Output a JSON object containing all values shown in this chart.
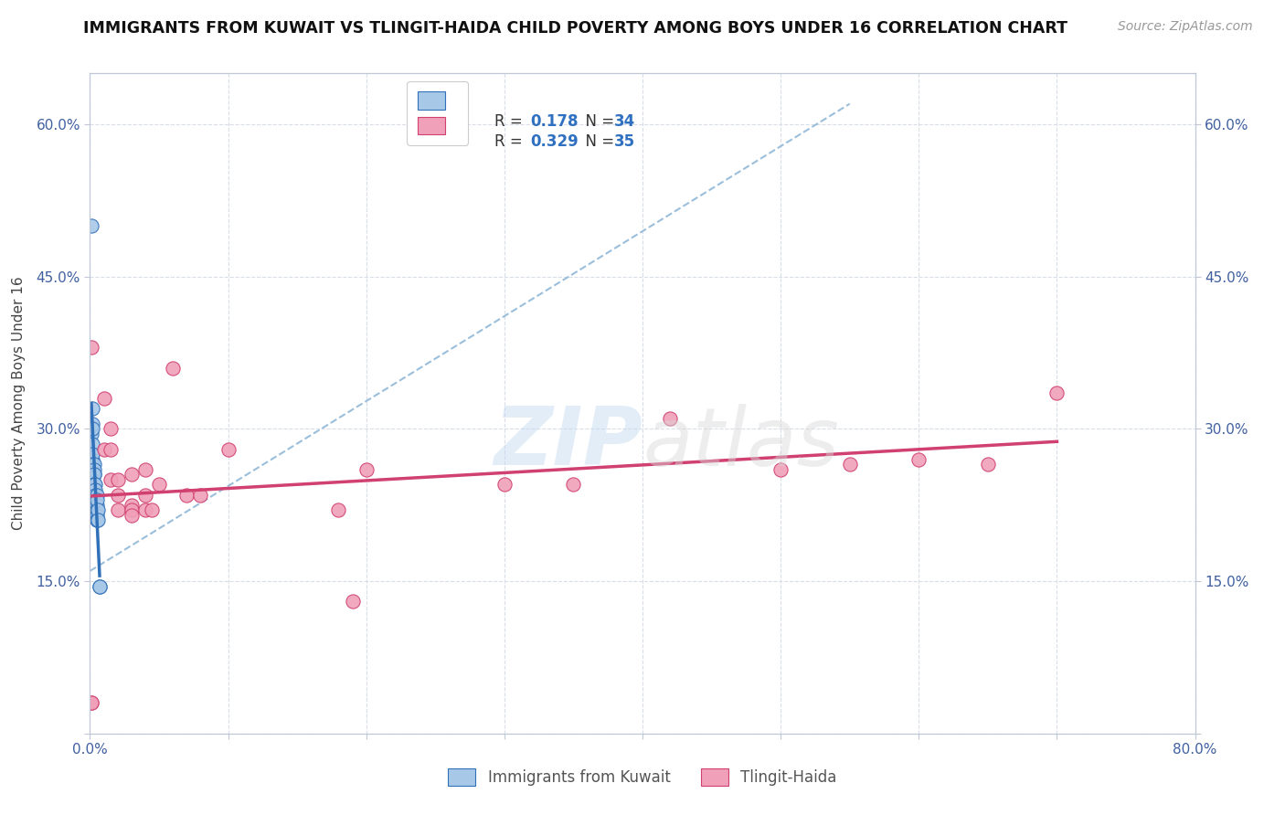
{
  "title": "IMMIGRANTS FROM KUWAIT VS TLINGIT-HAIDA CHILD POVERTY AMONG BOYS UNDER 16 CORRELATION CHART",
  "source": "Source: ZipAtlas.com",
  "ylabel": "Child Poverty Among Boys Under 16",
  "xlim": [
    0.0,
    0.8
  ],
  "ylim": [
    0.0,
    0.65
  ],
  "watermark_text": "ZIPatlas",
  "color_blue": "#a8c8e8",
  "color_pink": "#f0a0b8",
  "line_color_blue": "#3070b8",
  "line_color_pink": "#d04070",
  "trendline_dashed_color": "#90b8d8",
  "grid_color": "#d8dde8",
  "background_color": "#ffffff",
  "axis_color": "#c0c8d8",
  "tick_color": "#4060a0",
  "title_color": "#111111",
  "source_color": "#999999",
  "ylabel_color": "#444444",
  "kuwait_points": [
    [
      0.001,
      0.5
    ],
    [
      0.001,
      0.3
    ],
    [
      0.001,
      0.295
    ],
    [
      0.002,
      0.32
    ],
    [
      0.002,
      0.305
    ],
    [
      0.002,
      0.3
    ],
    [
      0.002,
      0.285
    ],
    [
      0.002,
      0.27
    ],
    [
      0.002,
      0.275
    ],
    [
      0.002,
      0.265
    ],
    [
      0.003,
      0.265
    ],
    [
      0.003,
      0.255
    ],
    [
      0.003,
      0.26
    ],
    [
      0.003,
      0.255
    ],
    [
      0.003,
      0.245
    ],
    [
      0.003,
      0.245
    ],
    [
      0.003,
      0.235
    ],
    [
      0.004,
      0.245
    ],
    [
      0.004,
      0.24
    ],
    [
      0.004,
      0.235
    ],
    [
      0.004,
      0.23
    ],
    [
      0.004,
      0.225
    ],
    [
      0.004,
      0.22
    ],
    [
      0.005,
      0.235
    ],
    [
      0.005,
      0.225
    ],
    [
      0.005,
      0.22
    ],
    [
      0.005,
      0.23
    ],
    [
      0.005,
      0.215
    ],
    [
      0.005,
      0.21
    ],
    [
      0.005,
      0.21
    ],
    [
      0.006,
      0.22
    ],
    [
      0.006,
      0.21
    ],
    [
      0.007,
      0.145
    ],
    [
      0.007,
      0.145
    ]
  ],
  "tlingit_points": [
    [
      0.001,
      0.38
    ],
    [
      0.001,
      0.03
    ],
    [
      0.001,
      0.03
    ],
    [
      0.01,
      0.33
    ],
    [
      0.01,
      0.28
    ],
    [
      0.015,
      0.3
    ],
    [
      0.015,
      0.28
    ],
    [
      0.015,
      0.25
    ],
    [
      0.02,
      0.25
    ],
    [
      0.02,
      0.235
    ],
    [
      0.02,
      0.22
    ],
    [
      0.03,
      0.255
    ],
    [
      0.03,
      0.225
    ],
    [
      0.03,
      0.22
    ],
    [
      0.03,
      0.215
    ],
    [
      0.04,
      0.26
    ],
    [
      0.04,
      0.235
    ],
    [
      0.04,
      0.22
    ],
    [
      0.045,
      0.22
    ],
    [
      0.05,
      0.245
    ],
    [
      0.06,
      0.36
    ],
    [
      0.07,
      0.235
    ],
    [
      0.08,
      0.235
    ],
    [
      0.1,
      0.28
    ],
    [
      0.18,
      0.22
    ],
    [
      0.19,
      0.13
    ],
    [
      0.2,
      0.26
    ],
    [
      0.3,
      0.245
    ],
    [
      0.35,
      0.245
    ],
    [
      0.42,
      0.31
    ],
    [
      0.5,
      0.26
    ],
    [
      0.55,
      0.265
    ],
    [
      0.6,
      0.27
    ],
    [
      0.65,
      0.265
    ],
    [
      0.7,
      0.335
    ]
  ],
  "xtick_positions": [
    0.0,
    0.1,
    0.2,
    0.3,
    0.4,
    0.5,
    0.6,
    0.7,
    0.8
  ],
  "xtick_labels": [
    "0.0%",
    "",
    "",
    "",
    "",
    "",
    "",
    "",
    "80.0%"
  ],
  "ytick_positions": [
    0.0,
    0.15,
    0.3,
    0.45,
    0.6
  ],
  "ytick_labels": [
    "",
    "15.0%",
    "30.0%",
    "45.0%",
    "60.0%"
  ]
}
